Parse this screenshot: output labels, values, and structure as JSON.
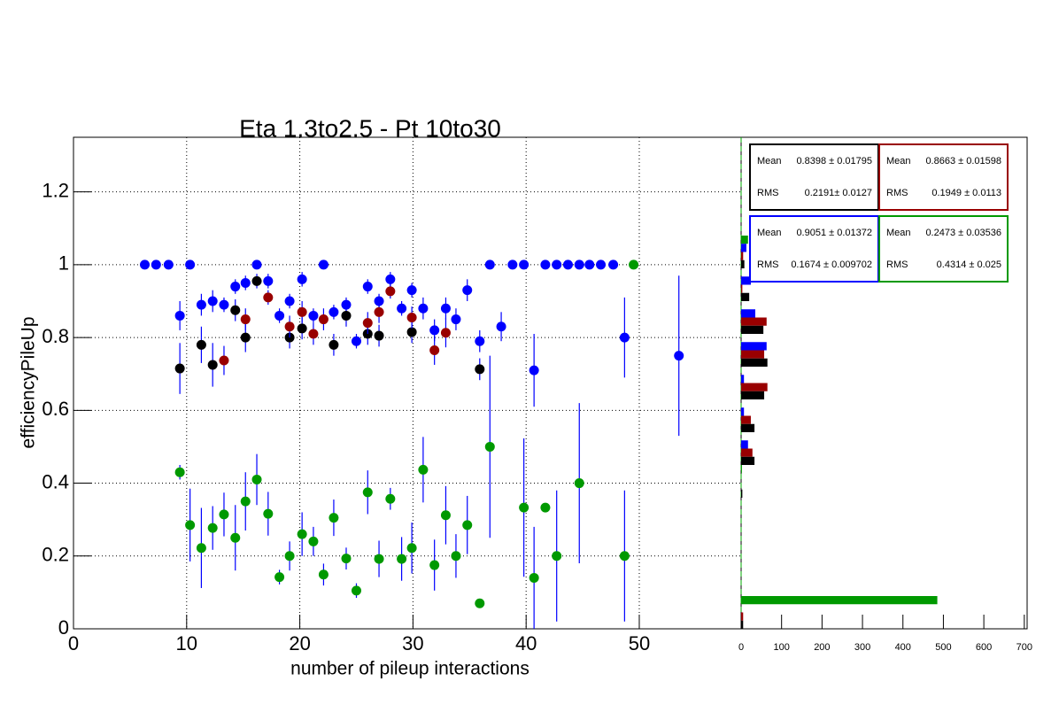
{
  "chart_data": [
    {
      "type": "scatter",
      "title": "Eta 1.3to2.5 - Pt 10to30",
      "x_label": "number of pileup interactions",
      "y_label": "efficiencyPileUp",
      "xlim": [
        0,
        59
      ],
      "ylim": [
        0,
        1.35
      ],
      "xticks": [
        0,
        10,
        20,
        30,
        40,
        50
      ],
      "yticks": [
        0,
        0.2,
        0.4,
        0.6,
        0.8,
        1,
        1.2
      ],
      "grid": true,
      "error_color": "#0000ff",
      "series": [
        {
          "color": "#0000ff",
          "x": [
            6.3,
            7.3,
            8.4,
            9.4,
            10.3,
            11.3,
            12.3,
            13.3,
            14.3,
            15.2,
            16.2,
            17.2,
            18.2,
            19.1,
            20.2,
            21.2,
            22.1,
            23.0,
            24.1,
            25.0,
            26.0,
            27.0,
            28.0,
            29.0,
            29.9,
            30.9,
            31.9,
            32.9,
            33.8,
            34.8,
            35.9,
            36.8,
            37.8,
            38.8,
            39.8,
            40.7,
            41.7,
            42.7,
            43.7,
            44.7,
            45.6,
            46.6,
            47.7,
            48.7,
            53.5
          ],
          "values": [
            1,
            1,
            1,
            0.86,
            1,
            0.89,
            0.9,
            0.89,
            0.94,
            0.95,
            1,
            0.955,
            0.86,
            0.9,
            0.96,
            0.86,
            1,
            0.87,
            0.89,
            0.79,
            0.94,
            0.9,
            0.96,
            0.88,
            0.93,
            0.88,
            0.82,
            0.88,
            0.85,
            0.93,
            0.79,
            1,
            0.83,
            1,
            1,
            0.71,
            1,
            1,
            1,
            1,
            1,
            1,
            1,
            0.8,
            0.75
          ],
          "errors": [
            0,
            0,
            0,
            0.04,
            0,
            0.03,
            0.03,
            0.02,
            0.02,
            0.02,
            0,
            0.02,
            0.02,
            0.02,
            0.02,
            0.02,
            0,
            0.02,
            0.02,
            0.02,
            0.02,
            0.02,
            0.02,
            0.02,
            0.02,
            0.03,
            0.03,
            0.03,
            0.03,
            0.03,
            0.03,
            0,
            0.04,
            0,
            0,
            0.1,
            0,
            0,
            0,
            0,
            0,
            0,
            0,
            0.11,
            0.22
          ]
        },
        {
          "color": "#000000",
          "x": [
            9.4,
            11.3,
            12.3,
            14.3,
            15.2,
            16.2,
            19.1,
            20.2,
            23.0,
            24.1,
            26.0,
            27.0,
            29.9,
            35.9
          ],
          "values": [
            0.715,
            0.78,
            0.725,
            0.875,
            0.8,
            0.955,
            0.8,
            0.825,
            0.78,
            0.86,
            0.81,
            0.805,
            0.815,
            0.713
          ],
          "errors": [
            0.07,
            0.05,
            0.06,
            0.03,
            0.04,
            0.02,
            0.03,
            0.03,
            0.03,
            0.03,
            0.03,
            0.03,
            0.03,
            0.03
          ]
        },
        {
          "color": "#990000",
          "x": [
            13.3,
            15.2,
            17.2,
            19.1,
            20.2,
            21.2,
            22.1,
            26.0,
            27.0,
            28.0,
            29.9,
            31.9,
            32.9
          ],
          "values": [
            0.737,
            0.85,
            0.91,
            0.83,
            0.87,
            0.81,
            0.85,
            0.84,
            0.87,
            0.927,
            0.855,
            0.765,
            0.813
          ],
          "errors": [
            0.04,
            0.03,
            0.02,
            0.03,
            0.03,
            0.03,
            0.03,
            0.03,
            0.03,
            0.02,
            0.03,
            0.04,
            0.04
          ]
        },
        {
          "color": "#009900",
          "x": [
            9.4,
            10.3,
            11.3,
            12.3,
            13.3,
            14.3,
            15.2,
            16.2,
            17.2,
            18.2,
            19.1,
            20.2,
            21.2,
            22.1,
            23.0,
            24.1,
            25.0,
            26.0,
            27.0,
            28.0,
            29.0,
            29.9,
            30.9,
            31.9,
            32.9,
            33.8,
            34.8,
            35.9,
            36.8,
            39.8,
            40.7,
            41.7,
            42.7,
            44.7,
            48.7,
            49.5
          ],
          "values": [
            0.43,
            0.285,
            0.222,
            0.277,
            0.314,
            0.25,
            0.35,
            0.41,
            0.316,
            0.142,
            0.2,
            0.26,
            0.24,
            0.149,
            0.305,
            0.193,
            0.105,
            0.375,
            0.192,
            0.357,
            0.192,
            0.222,
            0.437,
            0.175,
            0.312,
            0.2,
            0.285,
            0.07,
            0.5,
            0.333,
            0.14,
            0.333,
            0.2,
            0.4,
            0.2,
            1
          ],
          "errors": [
            0.02,
            0.1,
            0.11,
            0.06,
            0.06,
            0.09,
            0.08,
            0.07,
            0.06,
            0.02,
            0.04,
            0.06,
            0.04,
            0.03,
            0.05,
            0.03,
            0.02,
            0.06,
            0.05,
            0.03,
            0.06,
            0.07,
            0.09,
            0.07,
            0.08,
            0.06,
            0.08,
            0.01,
            0.25,
            0.19,
            0.14,
            0,
            0.18,
            0.22,
            0.18,
            0
          ]
        }
      ]
    },
    {
      "type": "histogram",
      "orientation": "horizontal",
      "bins": [
        0,
        0.09,
        0.18,
        0.27,
        0.36,
        0.45,
        0.54,
        0.63,
        0.72,
        0.81,
        0.9,
        0.99,
        1.08,
        1.17,
        1.26,
        1.35
      ],
      "xlim": [
        0,
        707
      ],
      "xticks": [
        0,
        100,
        200,
        300,
        400,
        500,
        600,
        700
      ],
      "ylim": [
        0,
        1.35
      ],
      "divider_color": "#00aa00",
      "series": [
        {
          "color": "#009900",
          "values": [
            485,
            0,
            0,
            0,
            2,
            0,
            0,
            0,
            0,
            0,
            0,
            17,
            0,
            0,
            0
          ]
        },
        {
          "color": "#0000ff",
          "values": [
            0,
            0,
            0,
            0,
            0,
            17,
            7,
            7,
            63,
            35,
            24,
            13,
            0,
            0,
            0
          ]
        },
        {
          "color": "#990000",
          "values": [
            5,
            0,
            0,
            0,
            0,
            28,
            24,
            65,
            57,
            63,
            3,
            5,
            0,
            0,
            0
          ]
        },
        {
          "color": "#000000",
          "values": [
            5,
            0,
            0,
            0,
            3,
            33,
            33,
            57,
            65,
            55,
            20,
            8,
            0,
            0,
            0
          ]
        }
      ],
      "stats": [
        {
          "color": "#000000",
          "mean_label": "Mean",
          "mean": "0.8398 ± 0.01795",
          "rms_label": "RMS",
          "rms": "0.2191± 0.0127"
        },
        {
          "color": "#990000",
          "mean_label": "Mean",
          "mean": "0.8663 ± 0.01598",
          "rms_label": "RMS",
          "rms": "0.1949 ± 0.0113"
        },
        {
          "color": "#0000ff",
          "mean_label": "Mean",
          "mean": "0.9051 ± 0.01372",
          "rms_label": "RMS",
          "rms": "0.1674 ± 0.009702"
        },
        {
          "color": "#009900",
          "mean_label": "Mean",
          "mean": "0.2473 ± 0.03536",
          "rms_label": "RMS",
          "rms": "0.4314 ±  0.025"
        }
      ]
    }
  ]
}
